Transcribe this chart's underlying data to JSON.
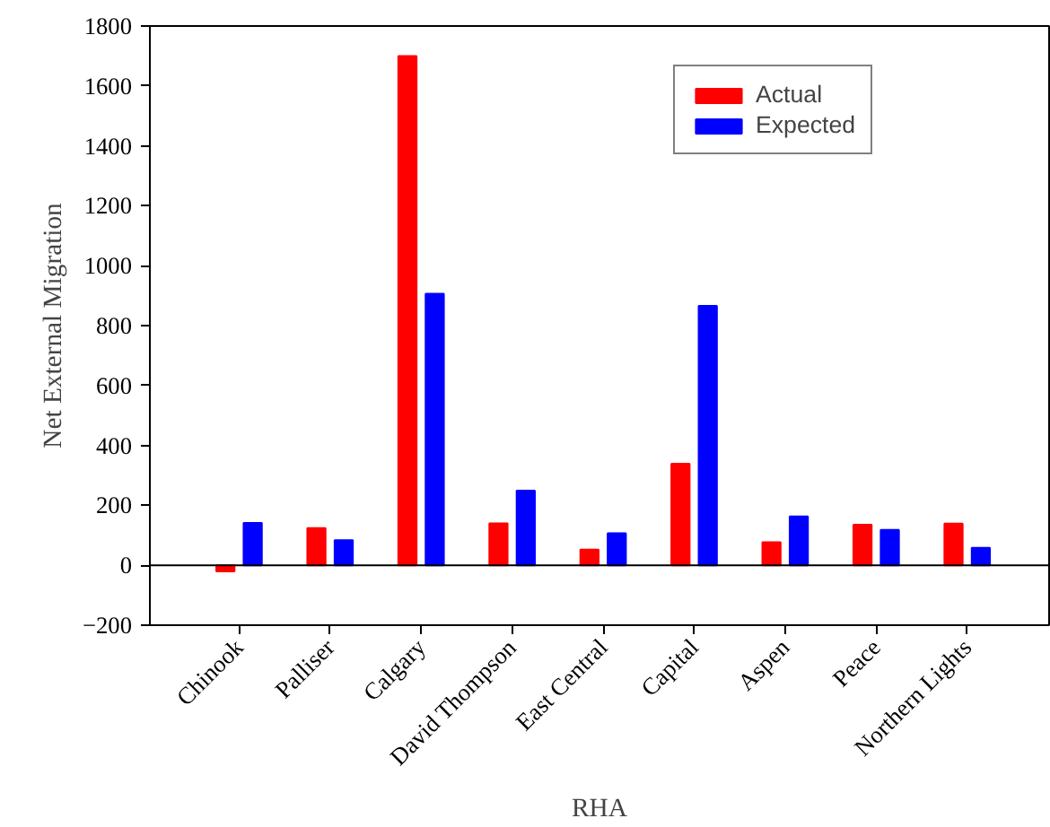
{
  "chart_data": {
    "type": "bar",
    "xlabel": "RHA",
    "ylabel": "Net External Migration",
    "categories": [
      "Chinook",
      "Palliser",
      "Calgary",
      "David Thompson",
      "East Central",
      "Capital",
      "Aspen",
      "Peace",
      "Northern Lights"
    ],
    "series": [
      {
        "name": "Actual",
        "color": "#ff0000",
        "values": [
          -20,
          124,
          1700,
          140,
          52,
          339,
          77,
          135,
          139
        ]
      },
      {
        "name": "Expected",
        "color": "#0000ff",
        "values": [
          141,
          84,
          906,
          249,
          107,
          866,
          163,
          118,
          58
        ]
      }
    ],
    "ylim": [
      -200,
      1800
    ],
    "yticks": [
      -200,
      0,
      200,
      400,
      600,
      800,
      1000,
      1200,
      1400,
      1600,
      1800
    ],
    "ref_lines": [
      {
        "axis": "y",
        "value": 0
      }
    ],
    "grid": false,
    "legend": "top right"
  }
}
